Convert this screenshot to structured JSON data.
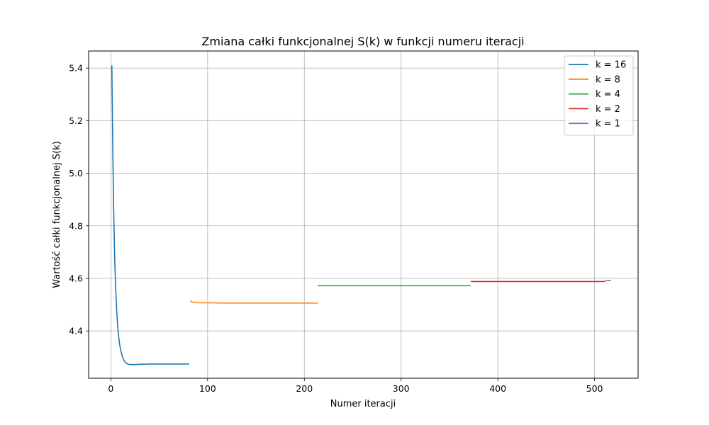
{
  "chart_data": {
    "type": "line",
    "title": "Zmiana całki funkcjonalnej S(k) w funkcji numeru iteracji",
    "xlabel": "Numer iteracji",
    "ylabel": "Wartość całki funkcjonalnej S(k)",
    "xlim": [
      -23,
      545
    ],
    "ylim": [
      4.22,
      5.465
    ],
    "xticks": [
      0,
      100,
      200,
      300,
      400,
      500
    ],
    "yticks": [
      4.4,
      4.6,
      4.8,
      5.0,
      5.2,
      5.4
    ],
    "grid": true,
    "legend_position": "top-right",
    "series": [
      {
        "name": "k = 16",
        "color": "#1f77b4",
        "x": [
          1,
          2,
          3,
          4,
          5,
          6,
          7,
          8,
          9,
          10,
          12,
          14,
          16,
          18,
          20,
          25,
          30,
          40,
          50,
          60,
          70,
          81
        ],
        "y": [
          5.41,
          5.08,
          4.84,
          4.67,
          4.56,
          4.48,
          4.42,
          4.38,
          4.35,
          4.33,
          4.3,
          4.285,
          4.277,
          4.273,
          4.272,
          4.272,
          4.273,
          4.274,
          4.274,
          4.274,
          4.274,
          4.274
        ]
      },
      {
        "name": "k = 8",
        "color": "#ff7f0e",
        "x": [
          82,
          84,
          87,
          92,
          100,
          120,
          150,
          180,
          214
        ],
        "y": [
          4.515,
          4.51,
          4.508,
          4.507,
          4.507,
          4.506,
          4.506,
          4.506,
          4.506
        ]
      },
      {
        "name": "k = 4",
        "color": "#2ca02c",
        "x": [
          214,
          250,
          300,
          350,
          372
        ],
        "y": [
          4.572,
          4.572,
          4.572,
          4.572,
          4.572
        ]
      },
      {
        "name": "k = 2",
        "color": "#d62728",
        "x": [
          372,
          400,
          450,
          500,
          511
        ],
        "y": [
          4.588,
          4.588,
          4.588,
          4.588,
          4.588
        ]
      },
      {
        "name": "k = 1",
        "color": "#9467bd",
        "x": [
          511,
          514,
          517
        ],
        "y": [
          4.592,
          4.592,
          4.592
        ]
      }
    ]
  }
}
